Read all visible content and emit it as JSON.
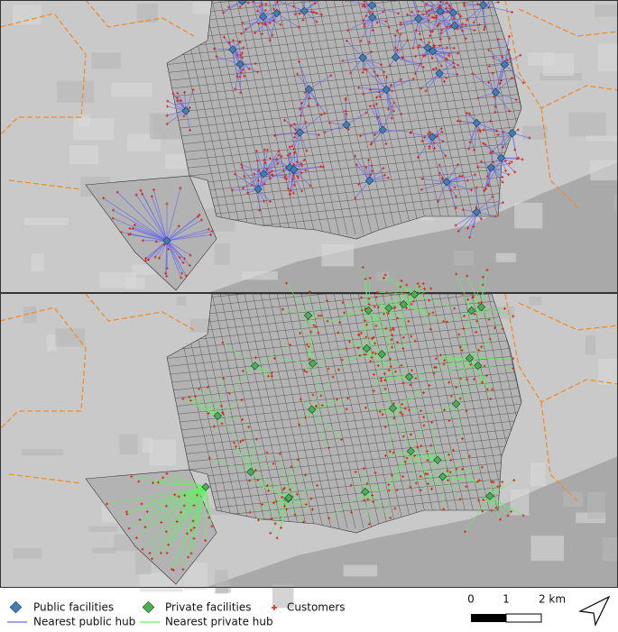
{
  "legend": {
    "items": [
      {
        "label": "Public facilities"
      },
      {
        "label": "Private facilities"
      },
      {
        "label": "Customers"
      },
      {
        "label": "Nearest public hub"
      },
      {
        "label": "Nearest private hub"
      }
    ]
  },
  "scale_bar": {
    "labels": [
      "0",
      "1",
      "2 km"
    ]
  }
}
